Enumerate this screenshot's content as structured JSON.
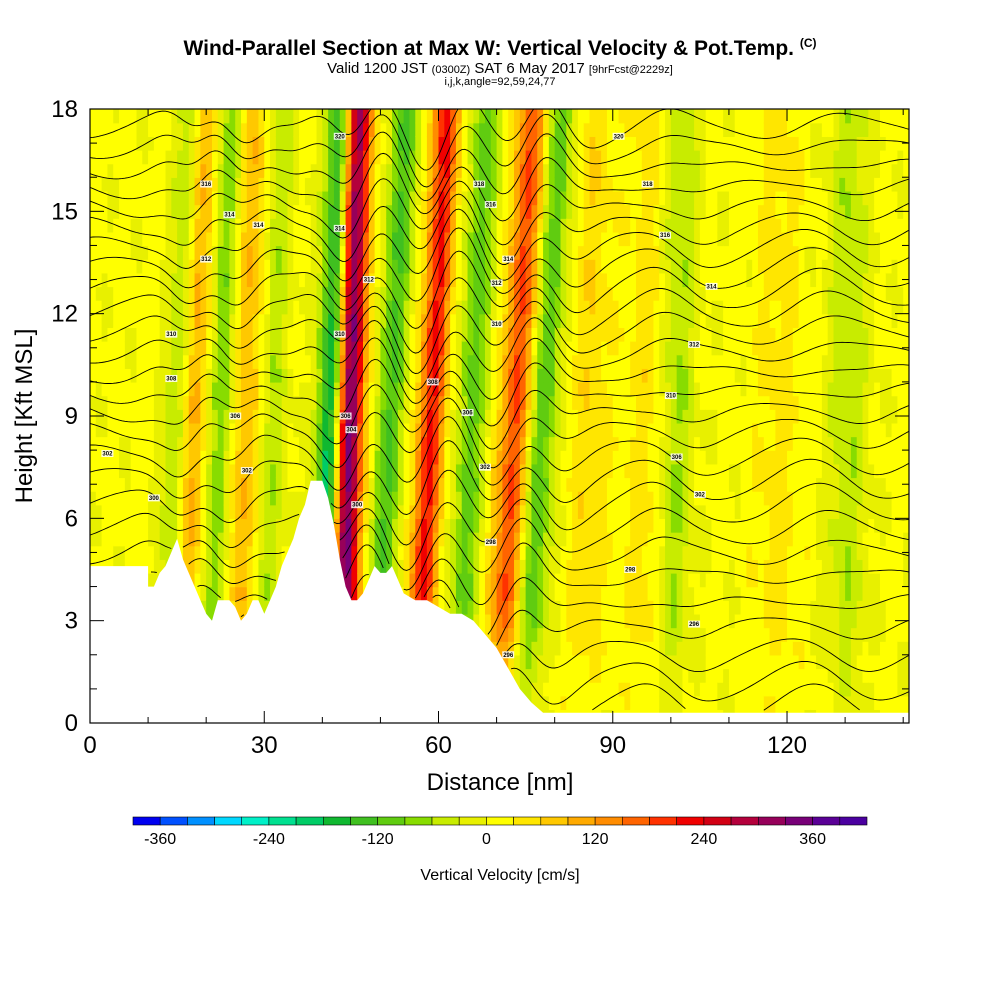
{
  "header": {
    "title": "Wind-Parallel Section at Max W: Vertical Velocity & Pot.Temp.",
    "copyright_mark": "(C)",
    "valid_prefix": "Valid 1200 JST",
    "valid_utc": "(0300Z)",
    "valid_date": "SAT 6 May 2017",
    "forecast": "[9hrFcst@2229z]",
    "indices": "i,j,k,angle=92,59,24,77"
  },
  "chart_data": {
    "type": "heatmap",
    "title": "Wind-Parallel Section at Max W: Vertical Velocity & Pot.Temp.",
    "xlabel": "Distance [nm]",
    "ylabel": "Height [Kft MSL]",
    "xlim": [
      0,
      141
    ],
    "ylim": [
      0,
      18
    ],
    "x_ticks": [
      0,
      30,
      60,
      90,
      120
    ],
    "y_ticks": [
      0,
      3,
      6,
      9,
      12,
      15,
      18
    ],
    "colorbar": {
      "label": "Vertical Velocity [cm/s]",
      "labels": [
        "-360",
        "-240",
        "-120",
        "0",
        "120",
        "240",
        "360"
      ],
      "bins": [
        -390,
        -360,
        -330,
        -300,
        -270,
        -240,
        -210,
        -180,
        -150,
        -120,
        -90,
        -60,
        -30,
        0,
        30,
        60,
        90,
        120,
        150,
        180,
        210,
        240,
        270,
        300,
        330,
        360,
        390,
        420
      ],
      "colors": [
        "#0000f0",
        "#0050ff",
        "#0090ff",
        "#00d8ff",
        "#00f0c8",
        "#00e090",
        "#00cc66",
        "#10b830",
        "#40c020",
        "#60cc10",
        "#88dc00",
        "#c8ec00",
        "#e8f000",
        "#ffff00",
        "#ffe600",
        "#ffc800",
        "#ffaa00",
        "#ff8c00",
        "#ff6400",
        "#ff3200",
        "#f00000",
        "#d20014",
        "#b4003c",
        "#96005a",
        "#780078",
        "#5a0096",
        "#4b00a0"
      ]
    },
    "terrain_profile": [
      {
        "x": 0,
        "z": 4.6
      },
      {
        "x": 10,
        "z": 4.6
      },
      {
        "x": 10,
        "z": 4.0
      },
      {
        "x": 11,
        "z": 4.0
      },
      {
        "x": 12,
        "z": 4.4
      },
      {
        "x": 13,
        "z": 4.6
      },
      {
        "x": 14,
        "z": 5.0
      },
      {
        "x": 15,
        "z": 5.4
      },
      {
        "x": 16,
        "z": 4.8
      },
      {
        "x": 17,
        "z": 4.4
      },
      {
        "x": 18,
        "z": 4.0
      },
      {
        "x": 19,
        "z": 3.6
      },
      {
        "x": 20,
        "z": 3.2
      },
      {
        "x": 21,
        "z": 3.0
      },
      {
        "x": 22,
        "z": 3.6
      },
      {
        "x": 24,
        "z": 3.6
      },
      {
        "x": 25,
        "z": 3.4
      },
      {
        "x": 26,
        "z": 3.0
      },
      {
        "x": 27,
        "z": 3.2
      },
      {
        "x": 28,
        "z": 3.6
      },
      {
        "x": 29,
        "z": 3.6
      },
      {
        "x": 30,
        "z": 3.2
      },
      {
        "x": 31,
        "z": 3.6
      },
      {
        "x": 32,
        "z": 4.0
      },
      {
        "x": 33,
        "z": 4.6
      },
      {
        "x": 34,
        "z": 5.0
      },
      {
        "x": 35,
        "z": 5.4
      },
      {
        "x": 36,
        "z": 6.0
      },
      {
        "x": 37,
        "z": 6.4
      },
      {
        "x": 38,
        "z": 7.1
      },
      {
        "x": 40,
        "z": 7.1
      },
      {
        "x": 41,
        "z": 6.6
      },
      {
        "x": 42,
        "z": 5.8
      },
      {
        "x": 43,
        "z": 4.8
      },
      {
        "x": 44,
        "z": 4.0
      },
      {
        "x": 45,
        "z": 3.6
      },
      {
        "x": 46,
        "z": 3.6
      },
      {
        "x": 47,
        "z": 3.8
      },
      {
        "x": 48,
        "z": 4.2
      },
      {
        "x": 49,
        "z": 4.6
      },
      {
        "x": 50,
        "z": 4.4
      },
      {
        "x": 51,
        "z": 4.4
      },
      {
        "x": 52,
        "z": 4.6
      },
      {
        "x": 53,
        "z": 4.2
      },
      {
        "x": 54,
        "z": 3.8
      },
      {
        "x": 56,
        "z": 3.6
      },
      {
        "x": 58,
        "z": 3.6
      },
      {
        "x": 60,
        "z": 3.4
      },
      {
        "x": 62,
        "z": 3.2
      },
      {
        "x": 64,
        "z": 3.2
      },
      {
        "x": 66,
        "z": 3.0
      },
      {
        "x": 68,
        "z": 2.6
      },
      {
        "x": 70,
        "z": 2.2
      },
      {
        "x": 72,
        "z": 1.6
      },
      {
        "x": 74,
        "z": 1.0
      },
      {
        "x": 76,
        "z": 0.6
      },
      {
        "x": 78,
        "z": 0.3
      },
      {
        "x": 80,
        "z": 0.3
      },
      {
        "x": 141,
        "z": 0.3
      }
    ],
    "updraft_bands": [
      {
        "x_base": 43,
        "slope": 0.15,
        "width": 2.6,
        "amp": 390
      },
      {
        "x_base": 56,
        "slope": 0.3,
        "width": 2.4,
        "amp": 210
      },
      {
        "x_base": 70,
        "slope": 0.35,
        "width": 2.6,
        "amp": 180
      },
      {
        "x_base": 15,
        "slope": 0.25,
        "width": 2.2,
        "amp": 120
      },
      {
        "x_base": 25,
        "slope": 0.2,
        "width": 2.6,
        "amp": 90
      },
      {
        "x_base": 85,
        "slope": 0.12,
        "width": 3.5,
        "amp": 45
      },
      {
        "x_base": 95,
        "slope": 0.1,
        "width": 3.5,
        "amp": 40
      },
      {
        "x_base": 118,
        "slope": 0.05,
        "width": 4.0,
        "amp": 35
      }
    ],
    "downdraft_bands": [
      {
        "x_base": 40,
        "slope": 0.2,
        "width": 2.4,
        "amp": -280
      },
      {
        "x_base": 49,
        "slope": 0.3,
        "width": 2.6,
        "amp": -130
      },
      {
        "x_base": 63,
        "slope": 0.3,
        "width": 2.6,
        "amp": -110
      },
      {
        "x_base": 75,
        "slope": 0.35,
        "width": 2.6,
        "amp": -120
      },
      {
        "x_base": 13,
        "slope": 0.25,
        "width": 2.2,
        "amp": -100
      },
      {
        "x_base": 21,
        "slope": 0.2,
        "width": 2.2,
        "amp": -90
      },
      {
        "x_base": 30,
        "slope": 0.15,
        "width": 2.6,
        "amp": -60
      },
      {
        "x_base": 100,
        "slope": 0.1,
        "width": 3.0,
        "amp": -70
      },
      {
        "x_base": 130,
        "slope": 0.05,
        "width": 3.5,
        "amp": -60
      }
    ],
    "potential_temperature_contours": {
      "z_levels": [
        0.5,
        1.2,
        2.0,
        2.8,
        3.5,
        4.3,
        5.0,
        5.7,
        6.4,
        7.1,
        7.8,
        8.5,
        9.1,
        9.7,
        10.3,
        10.9,
        11.5,
        12.1,
        12.7,
        13.3,
        13.9,
        14.5,
        15.1,
        15.7,
        16.3,
        16.9,
        17.5
      ],
      "labels": [
        {
          "x": 3,
          "z": 7.9,
          "text": "302"
        },
        {
          "x": 11,
          "z": 6.6,
          "text": "300"
        },
        {
          "x": 14,
          "z": 11.4,
          "text": "310"
        },
        {
          "x": 14,
          "z": 10.1,
          "text": "308"
        },
        {
          "x": 20,
          "z": 15.8,
          "text": "316"
        },
        {
          "x": 24,
          "z": 14.9,
          "text": "314"
        },
        {
          "x": 29,
          "z": 14.6,
          "text": "314"
        },
        {
          "x": 20,
          "z": 13.6,
          "text": "312"
        },
        {
          "x": 25,
          "z": 9.0,
          "text": "306"
        },
        {
          "x": 27,
          "z": 7.4,
          "text": "302"
        },
        {
          "x": 43,
          "z": 17.2,
          "text": "320"
        },
        {
          "x": 43,
          "z": 14.5,
          "text": "314"
        },
        {
          "x": 43,
          "z": 11.4,
          "text": "310"
        },
        {
          "x": 44,
          "z": 9.0,
          "text": "306"
        },
        {
          "x": 45,
          "z": 8.6,
          "text": "304"
        },
        {
          "x": 46,
          "z": 6.4,
          "text": "300"
        },
        {
          "x": 48,
          "z": 13.0,
          "text": "312"
        },
        {
          "x": 59,
          "z": 10.0,
          "text": "308"
        },
        {
          "x": 65,
          "z": 9.1,
          "text": "306"
        },
        {
          "x": 67,
          "z": 15.8,
          "text": "318"
        },
        {
          "x": 69,
          "z": 15.2,
          "text": "316"
        },
        {
          "x": 72,
          "z": 13.6,
          "text": "314"
        },
        {
          "x": 70,
          "z": 12.9,
          "text": "312"
        },
        {
          "x": 70,
          "z": 11.7,
          "text": "310"
        },
        {
          "x": 68,
          "z": 7.5,
          "text": "302"
        },
        {
          "x": 69,
          "z": 5.3,
          "text": "298"
        },
        {
          "x": 72,
          "z": 2.0,
          "text": "296"
        },
        {
          "x": 91,
          "z": 17.2,
          "text": "320"
        },
        {
          "x": 96,
          "z": 15.8,
          "text": "318"
        },
        {
          "x": 99,
          "z": 14.3,
          "text": "316"
        },
        {
          "x": 107,
          "z": 12.8,
          "text": "314"
        },
        {
          "x": 104,
          "z": 11.1,
          "text": "312"
        },
        {
          "x": 100,
          "z": 9.6,
          "text": "310"
        },
        {
          "x": 101,
          "z": 7.8,
          "text": "306"
        },
        {
          "x": 105,
          "z": 6.7,
          "text": "302"
        },
        {
          "x": 93,
          "z": 4.5,
          "text": "298"
        },
        {
          "x": 104,
          "z": 2.9,
          "text": "296"
        }
      ]
    }
  }
}
